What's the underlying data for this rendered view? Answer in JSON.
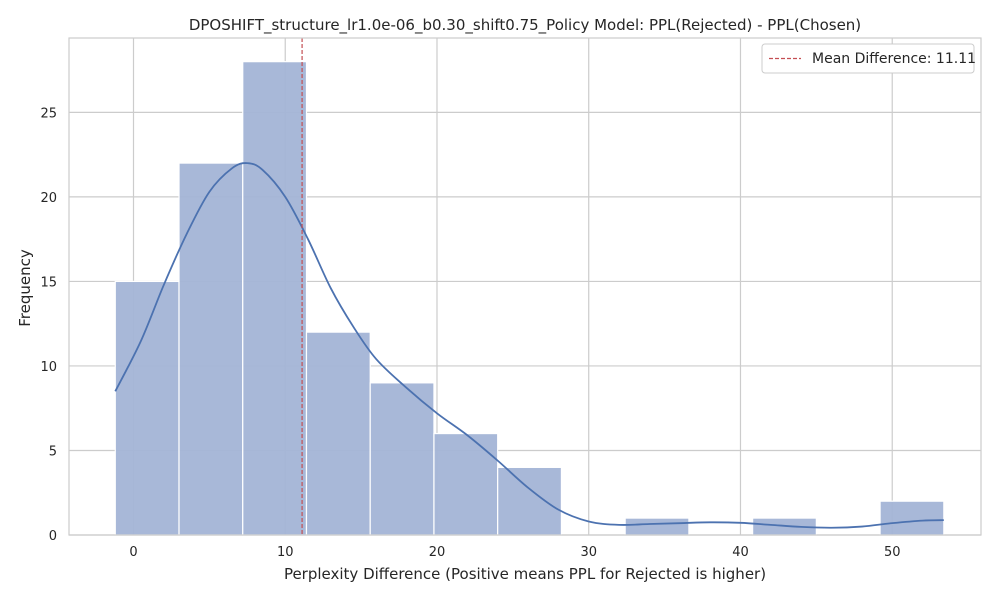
{
  "chart_data": {
    "type": "histogram",
    "title": "DPOSHIFT_structure_lr1.0e-06_b0.30_shift0.75_Policy Model: PPL(Rejected) - PPL(Chosen)",
    "xlabel": "Perplexity Difference (Positive means PPL for Rejected is higher)",
    "ylabel": "Frequency",
    "xlim": [
      -4.25,
      55.85
    ],
    "ylim": [
      0,
      29.4
    ],
    "x_ticks": [
      0,
      10,
      20,
      30,
      40,
      50
    ],
    "y_ticks": [
      0,
      5,
      10,
      15,
      20,
      25
    ],
    "grid": true,
    "bins": [
      {
        "x0": -1.2,
        "x1": 3.0,
        "count": 15
      },
      {
        "x0": 3.0,
        "x1": 7.2,
        "count": 22
      },
      {
        "x0": 7.2,
        "x1": 11.4,
        "count": 28
      },
      {
        "x0": 11.4,
        "x1": 15.6,
        "count": 12
      },
      {
        "x0": 15.6,
        "x1": 19.8,
        "count": 9
      },
      {
        "x0": 19.8,
        "x1": 24.0,
        "count": 6
      },
      {
        "x0": 24.0,
        "x1": 28.2,
        "count": 4
      },
      {
        "x0": 28.2,
        "x1": 32.4,
        "count": 0
      },
      {
        "x0": 32.4,
        "x1": 36.6,
        "count": 1
      },
      {
        "x0": 36.6,
        "x1": 40.8,
        "count": 0
      },
      {
        "x0": 40.8,
        "x1": 45.0,
        "count": 1
      },
      {
        "x0": 45.0,
        "x1": 49.2,
        "count": 0
      },
      {
        "x0": 49.2,
        "x1": 53.4,
        "count": 2
      }
    ],
    "kde": {
      "x": [
        -1.2,
        0.5,
        2.0,
        3.5,
        5.0,
        6.5,
        7.5,
        8.5,
        10.0,
        11.5,
        13.0,
        14.5,
        16.0,
        18.0,
        20.0,
        22.0,
        24.0,
        26.0,
        28.0,
        30.0,
        32.0,
        34.0,
        36.0,
        38.0,
        40.0,
        42.0,
        44.0,
        46.0,
        48.0,
        50.0,
        52.0,
        53.4
      ],
      "y": [
        8.5,
        11.5,
        14.8,
        17.8,
        20.3,
        21.7,
        22.0,
        21.6,
        20.0,
        17.5,
        14.6,
        12.3,
        10.4,
        8.7,
        7.2,
        5.9,
        4.4,
        2.8,
        1.5,
        0.8,
        0.6,
        0.65,
        0.7,
        0.75,
        0.72,
        0.6,
        0.48,
        0.43,
        0.5,
        0.7,
        0.85,
        0.88
      ]
    },
    "mean_line": {
      "x": 11.11,
      "label": "Mean Difference: 11.11"
    },
    "legend": {
      "position": "top-right",
      "entries": [
        "Mean Difference: 11.11"
      ]
    },
    "colors": {
      "bar_fill": "#a3b4d6",
      "bar_edge": "#ffffff",
      "kde_line": "#4c72b0",
      "mean_line": "#c44e52",
      "grid": "#cccccc",
      "frame": "#cccccc"
    }
  }
}
